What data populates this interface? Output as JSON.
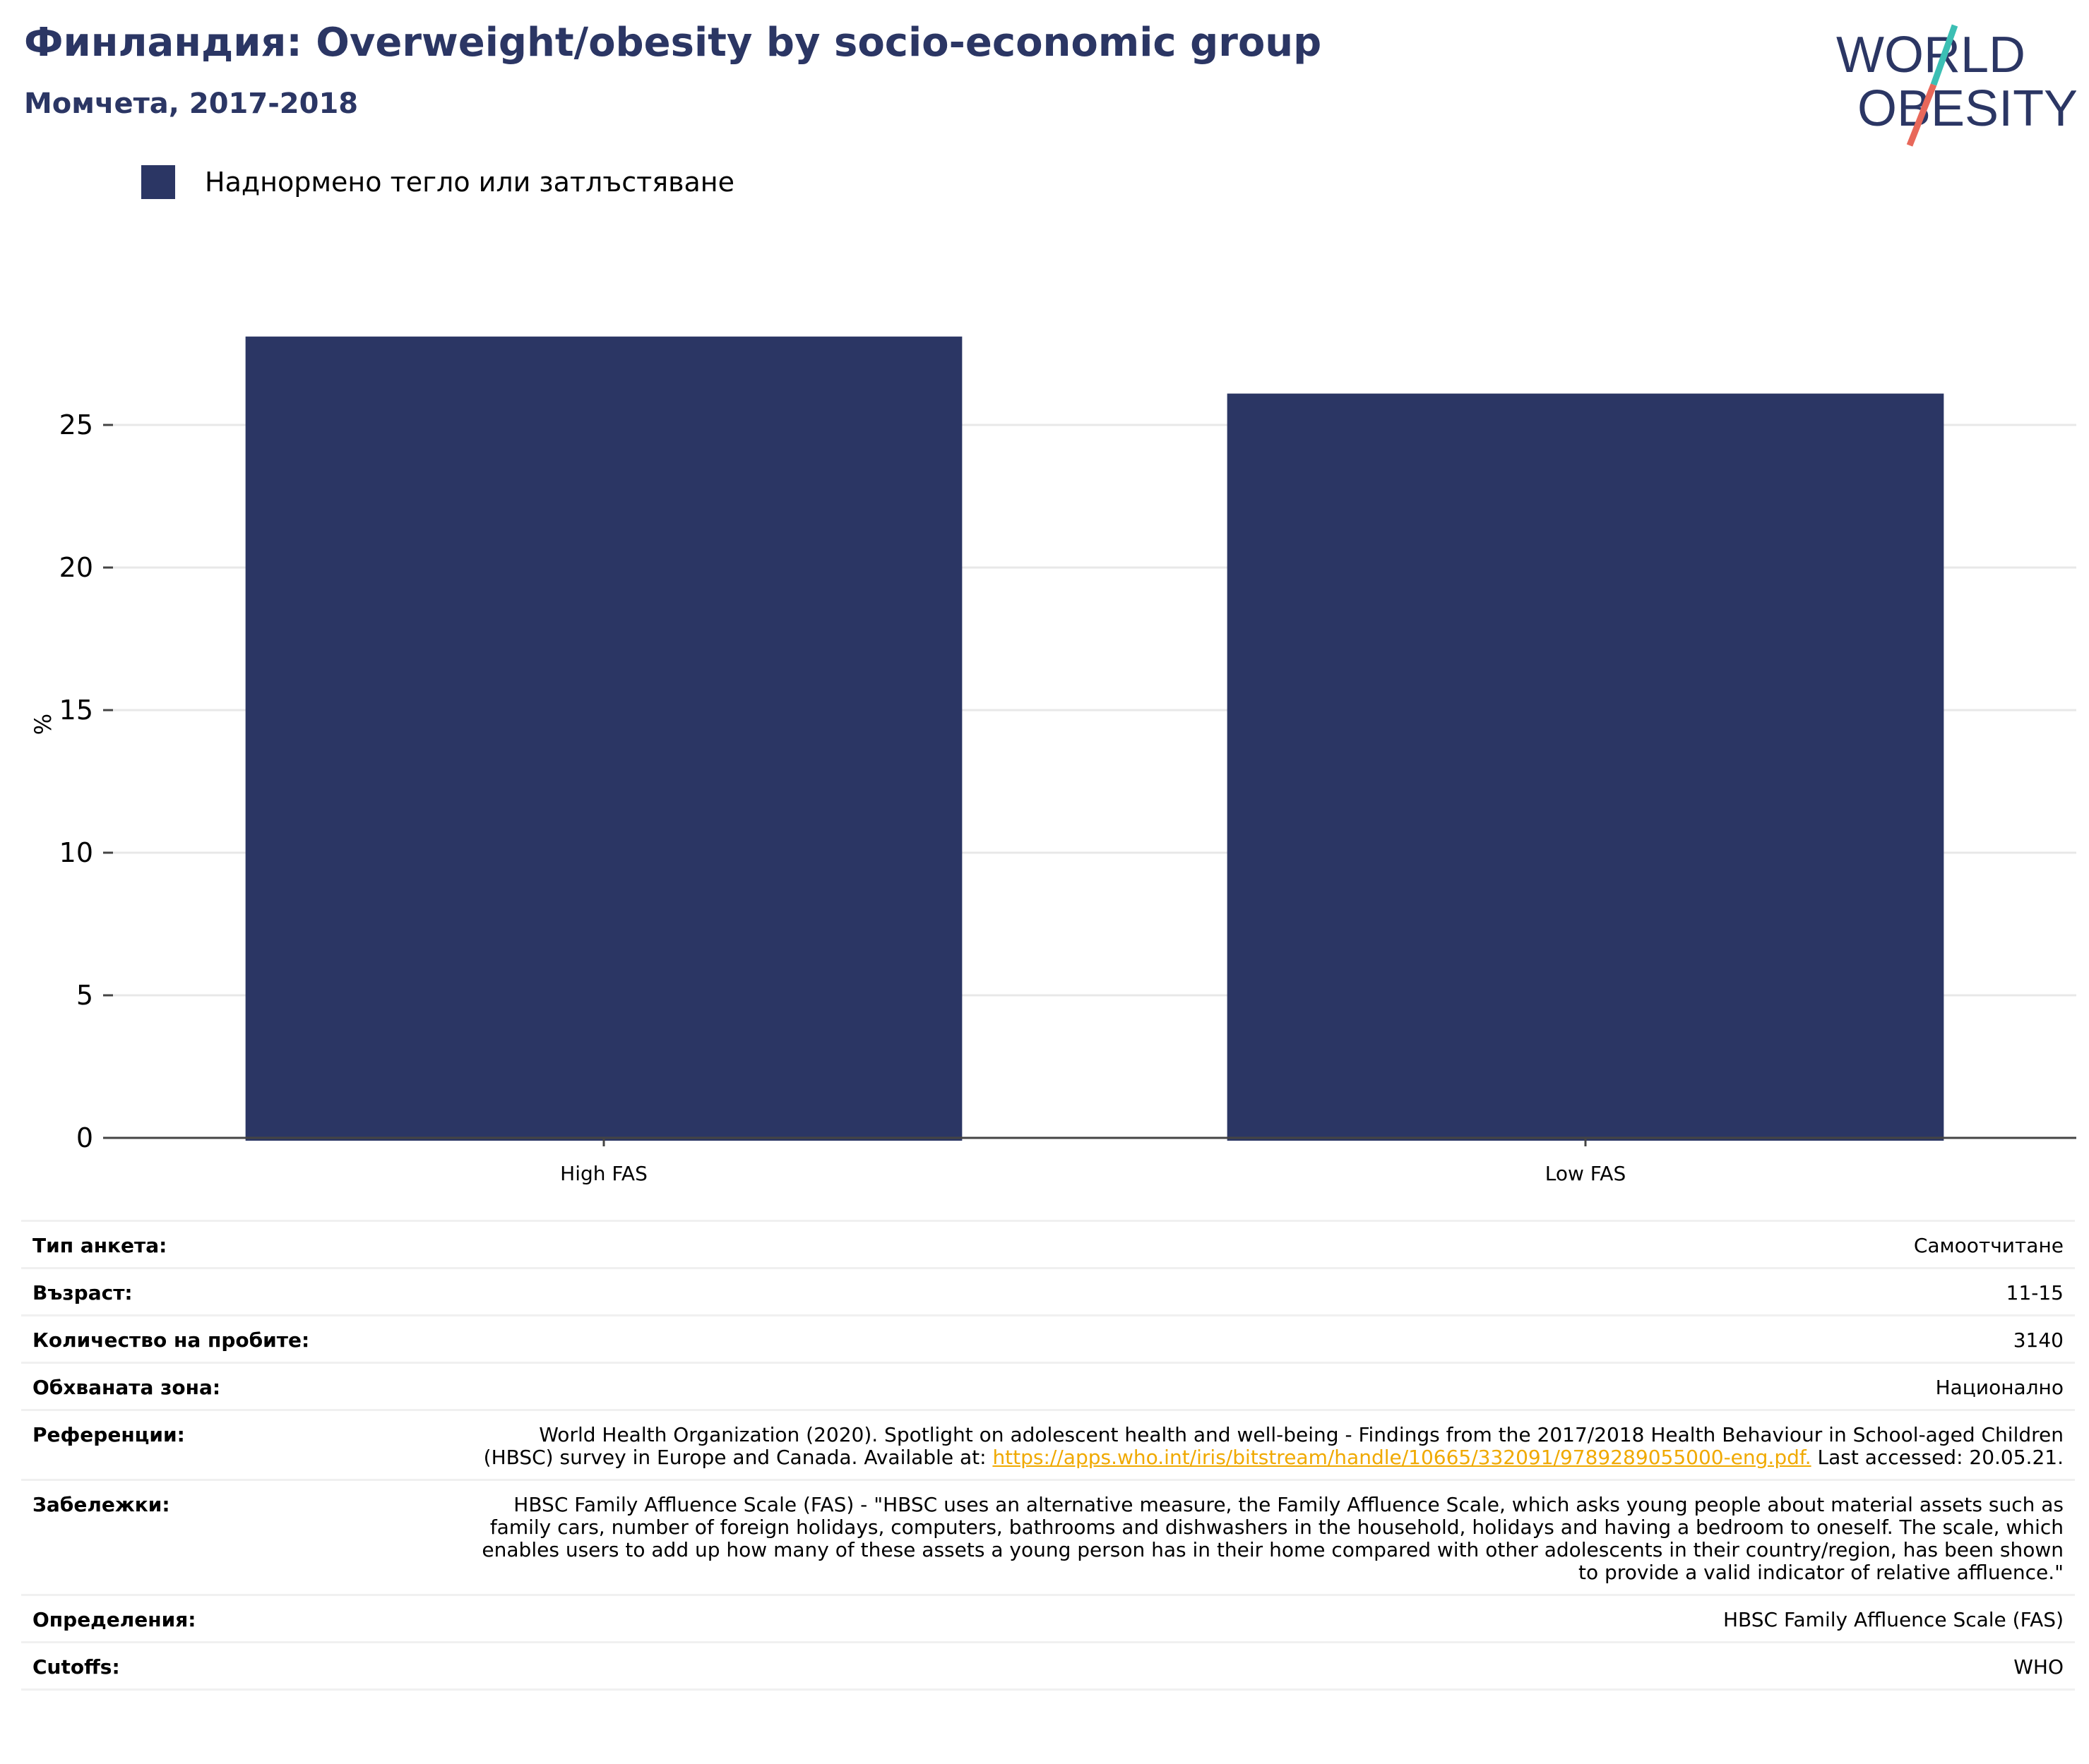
{
  "header": {
    "title": "Финландия: Overweight/obesity by socio-economic group",
    "subtitle": "Момчета, 2017-2018"
  },
  "logo": {
    "line1": "WORLD",
    "line2": "OBESITY",
    "colors": {
      "text": "#2b3664",
      "slash_top": "#3cbfb4",
      "slash_bottom": "#e8685a"
    }
  },
  "legend": {
    "label": "Наднормено тегло или затлъстяване",
    "color": "#2b3664"
  },
  "chart_data": {
    "type": "bar",
    "categories": [
      "High FAS",
      "Low FAS"
    ],
    "series": [
      {
        "name": "Наднормено тегло или затлъстяване",
        "values": [
          28.1,
          26.1
        ],
        "color": "#2b3664"
      }
    ],
    "ylabel": "%",
    "xlabel": "",
    "ylim": [
      0,
      30
    ],
    "yticks": [
      0,
      5,
      10,
      15,
      20,
      25
    ],
    "grid": true,
    "legend_position": "top-left"
  },
  "meta": [
    {
      "key": "Тип анкета:",
      "value": "Самоотчитане"
    },
    {
      "key": "Възраст:",
      "value": "11-15"
    },
    {
      "key": "Количество на пробите:",
      "value": "3140"
    },
    {
      "key": "Обхваната зона:",
      "value": "Национално"
    },
    {
      "key": "Референции:",
      "value_before": "World Health Organization (2020). Spotlight on adolescent health and well-being - Findings from the 2017/2018 Health Behaviour in School-aged Children (HBSC) survey in Europe and Canada. Available at: ",
      "link": "https://apps.who.int/iris/bitstream/handle/10665/332091/9789289055000-eng.pdf.",
      "value_after": " Last accessed: 20.05.21."
    },
    {
      "key": "Забележки:",
      "value": "HBSC Family Affluence Scale (FAS) - \"HBSC uses an alternative measure, the Family Affluence Scale, which asks young people about material assets such as family cars, number of foreign holidays, computers, bathrooms and dishwashers in the household, holidays and having a bedroom to oneself. The scale, which enables users to add up how many of these assets a young person has in their home compared with other adolescents in their country/region, has been shown to provide a valid indicator of relative affluence.\""
    },
    {
      "key": "Определения:",
      "value": "HBSC Family Affluence Scale (FAS)"
    },
    {
      "key": "Cutoffs:",
      "value": "WHO"
    }
  ]
}
